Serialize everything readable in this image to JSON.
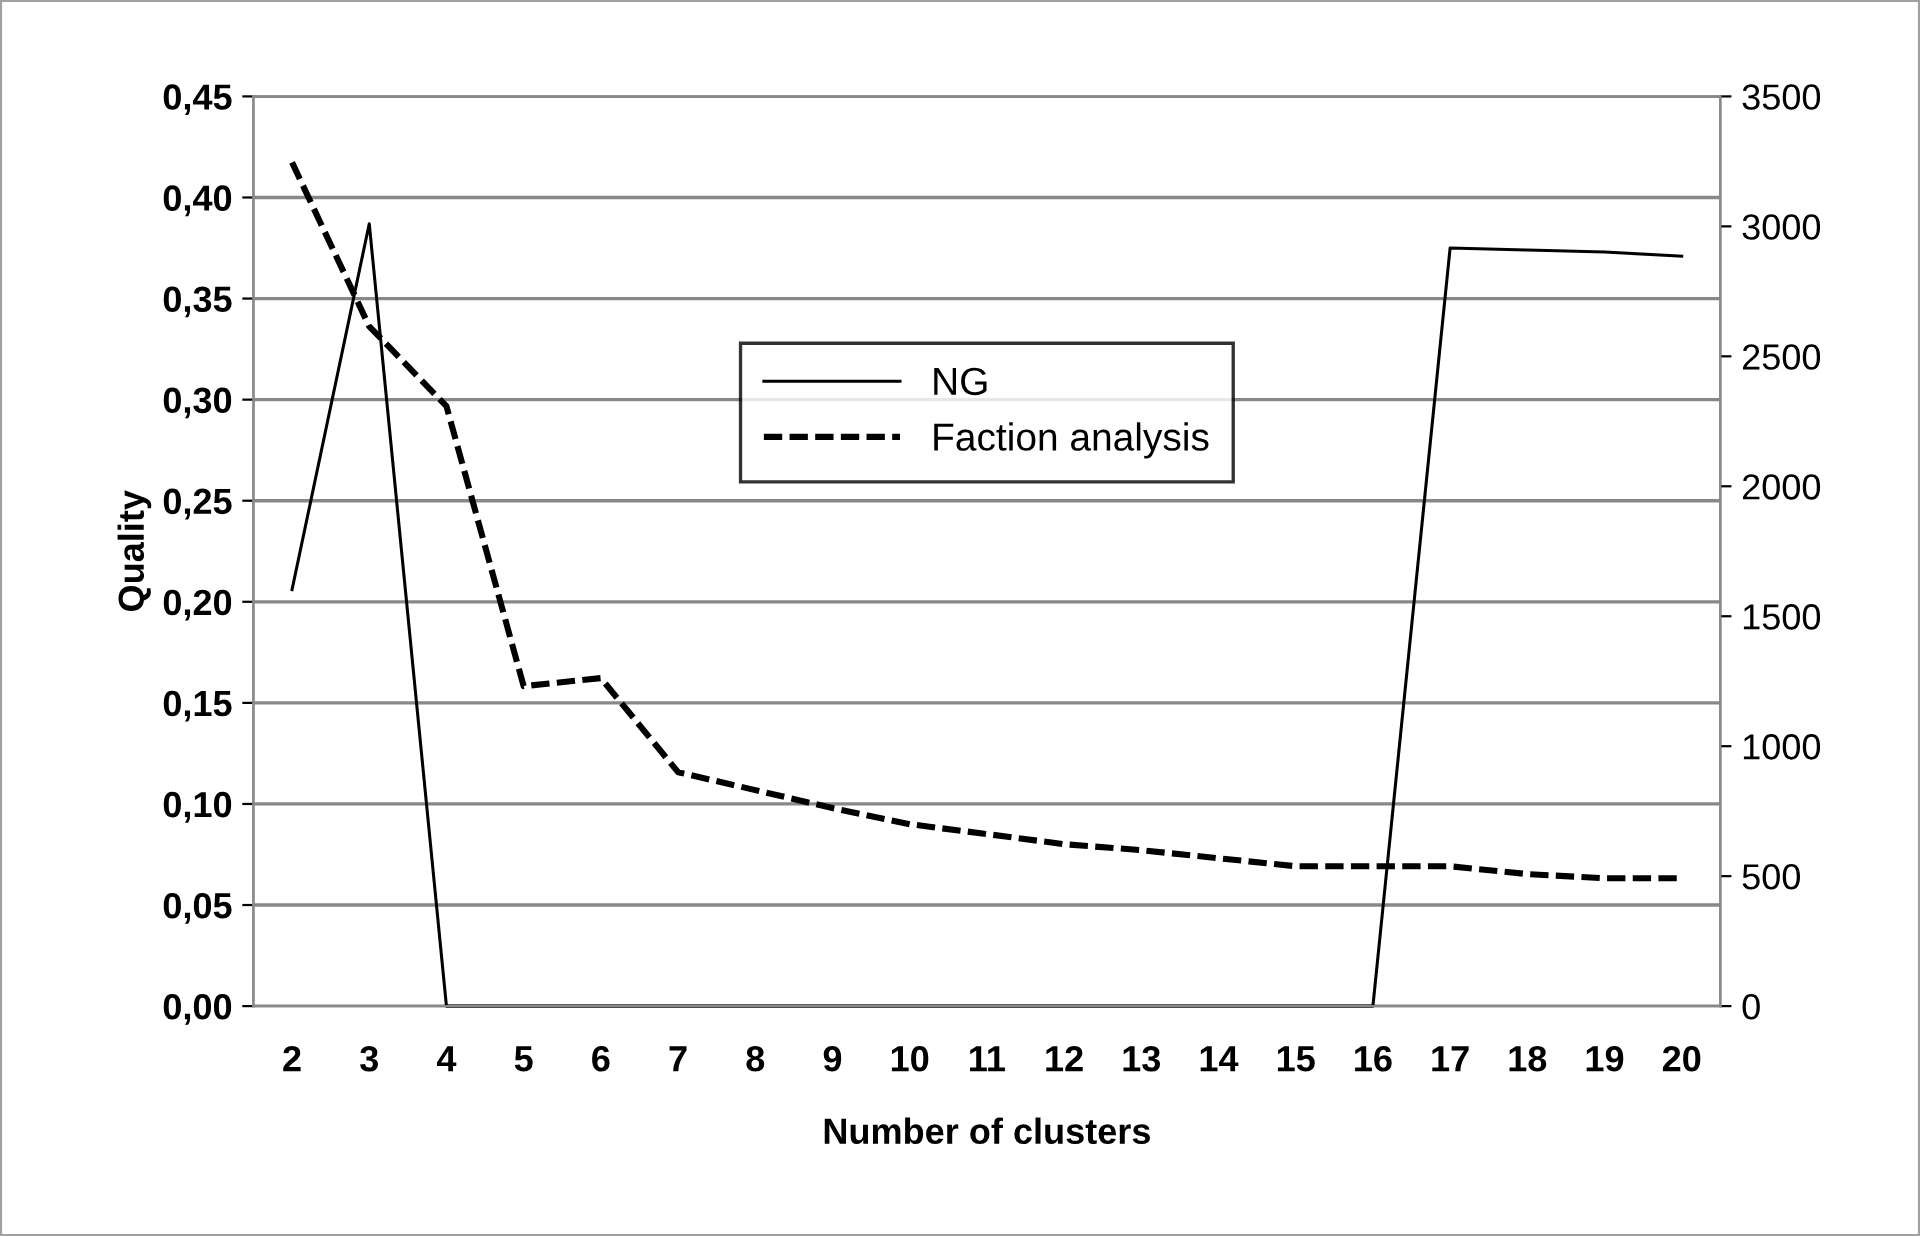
{
  "chart_data": {
    "type": "line",
    "xlabel": "Number of clusters",
    "ylabel": "Quality",
    "categories": [
      "2",
      "3",
      "4",
      "5",
      "6",
      "7",
      "8",
      "9",
      "10",
      "11",
      "12",
      "13",
      "14",
      "15",
      "16",
      "17",
      "18",
      "19",
      "20"
    ],
    "series": [
      {
        "name": "NG",
        "color": "#000000",
        "line_style": "solid",
        "values": [
          0.206,
          0.387,
          0,
          0,
          0,
          0,
          0,
          0,
          0,
          0,
          0,
          0,
          0,
          0,
          0,
          0.375,
          0.374,
          0.373,
          0.371
        ]
      },
      {
        "name": "Faction analysis",
        "color": "#000000",
        "line_style": "dashed",
        "axis": "y2",
        "values": [
          3246,
          2615,
          2308,
          1231,
          1262,
          900,
          831,
          762,
          700,
          662,
          623,
          600,
          569,
          538,
          538,
          538,
          508,
          492,
          492
        ]
      }
    ],
    "ylim": [
      0,
      0.45
    ],
    "yticks": [
      {
        "value": 0,
        "label": "0,00"
      },
      {
        "value": 0.05,
        "label": "0,05"
      },
      {
        "value": 0.1,
        "label": "0,10"
      },
      {
        "value": 0.15,
        "label": "0,15"
      },
      {
        "value": 0.2,
        "label": "0,20"
      },
      {
        "value": 0.25,
        "label": "0,25"
      },
      {
        "value": 0.3,
        "label": "0,30"
      },
      {
        "value": 0.35,
        "label": "0,35"
      },
      {
        "value": 0.4,
        "label": "0,40"
      },
      {
        "value": 0.45,
        "label": "0,45"
      }
    ],
    "y2lim": [
      0,
      3500
    ],
    "y2ticks": [
      0,
      500,
      1000,
      1500,
      2000,
      2500,
      3000,
      3500
    ],
    "grid": "y",
    "legend": "top",
    "marker": "none"
  }
}
